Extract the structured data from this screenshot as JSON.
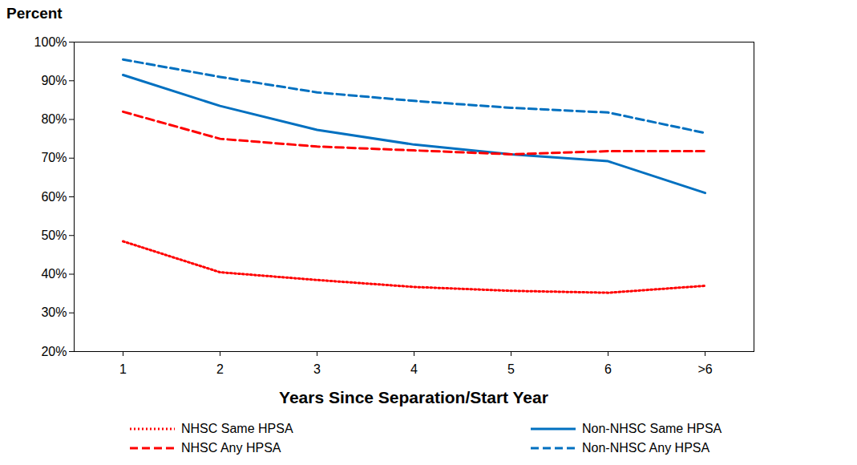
{
  "chart_data": {
    "type": "line",
    "y_label": "Percent",
    "x_label": "Years Since Separation/Start Year",
    "categories": [
      "1",
      "2",
      "3",
      "4",
      "5",
      "6",
      ">6"
    ],
    "series": [
      {
        "name": "NHSC Same HPSA",
        "color": "#ff0000",
        "line_style": "dotted",
        "values": [
          48.5,
          40.5,
          38.5,
          36.7,
          35.7,
          35.2,
          37
        ]
      },
      {
        "name": "Non-NHSC Same HPSA",
        "color": "#0070c0",
        "line_style": "solid",
        "values": [
          91.5,
          83.5,
          77.3,
          73.5,
          71,
          69.2,
          61
        ]
      },
      {
        "name": "NHSC Any HPSA",
        "color": "#ff0000",
        "line_style": "dashed",
        "values": [
          82,
          75,
          73,
          72,
          71,
          71.8,
          71.8
        ]
      },
      {
        "name": "Non-NHSC Any HPSA",
        "color": "#0070c0",
        "line_style": "dashed",
        "values": [
          95.5,
          91,
          87,
          84.8,
          83,
          81.8,
          76.5
        ]
      }
    ],
    "ylim": [
      20,
      100
    ],
    "yticks": [
      {
        "value": 20,
        "label": "20%"
      },
      {
        "value": 30,
        "label": "30%"
      },
      {
        "value": 40,
        "label": "40%"
      },
      {
        "value": 50,
        "label": "50%"
      },
      {
        "value": 60,
        "label": "60%"
      },
      {
        "value": 70,
        "label": "70%"
      },
      {
        "value": 80,
        "label": "80%"
      },
      {
        "value": 90,
        "label": "90%"
      },
      {
        "value": 100,
        "label": "100%"
      }
    ],
    "grid": false,
    "legend": "bottom"
  }
}
